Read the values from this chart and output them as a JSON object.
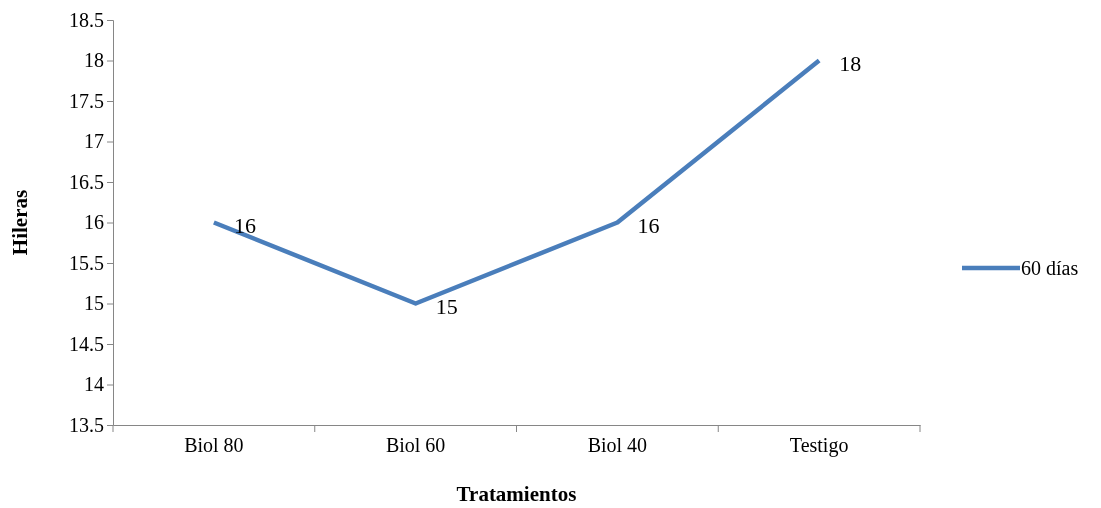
{
  "chart_data": {
    "type": "line",
    "xlabel": "Tratamientos",
    "ylabel": "Hileras",
    "categories": [
      "Biol 80",
      "Biol 60",
      "Biol 40",
      "Testigo"
    ],
    "series": [
      {
        "name": "60 días",
        "color": "#4a7ebb",
        "values": [
          16,
          15,
          16,
          18
        ]
      }
    ],
    "ylim": [
      13.5,
      18.5
    ],
    "yticks": [
      13.5,
      14,
      14.5,
      15,
      15.5,
      16,
      16.5,
      17,
      17.5,
      18,
      18.5
    ],
    "data_labels": true,
    "legend": "right",
    "grid": false,
    "marker": "none"
  }
}
